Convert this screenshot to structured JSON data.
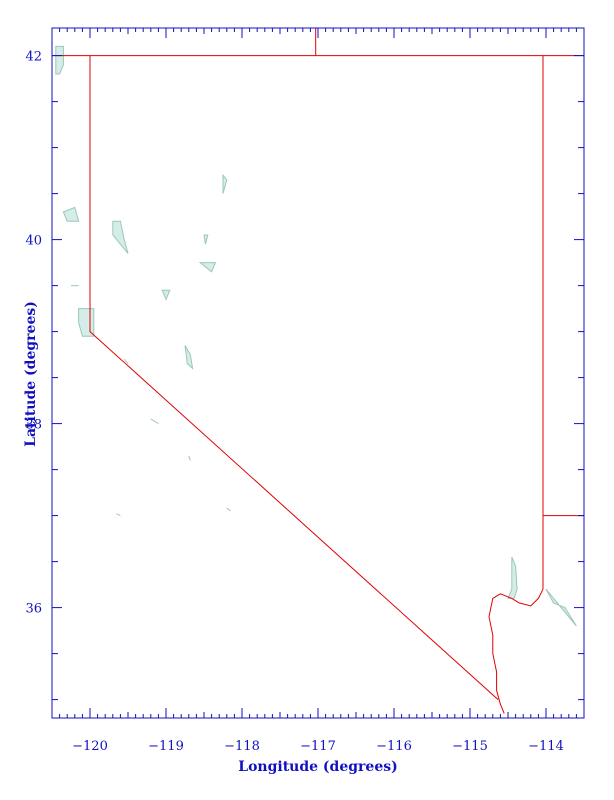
{
  "map": {
    "xlabel": "Longitude (degrees)",
    "ylabel": "Latitude (degrees)",
    "xlim": [
      -120.5,
      -113.5
    ],
    "ylim": [
      34.8,
      42.3
    ],
    "x_ticks": [
      -120,
      -119,
      -118,
      -117,
      -116,
      -115,
      -114
    ],
    "x_tick_labels": [
      "−120",
      "−119",
      "−118",
      "−117",
      "−116",
      "−115",
      "−114"
    ],
    "y_ticks": [
      36,
      38,
      40,
      42
    ],
    "y_tick_labels": [
      "36",
      "38",
      "40",
      "42"
    ],
    "colors": {
      "axis": "#1010c0",
      "border": "#e00000",
      "water_fill": "#d4ede8",
      "water_stroke": "#9cc7b5"
    },
    "state_borders": [
      {
        "name": "nevada-border",
        "points": [
          [
            -120.0,
            42.0
          ],
          [
            -120.0,
            39.0
          ],
          [
            -114.63,
            35.0
          ]
        ]
      },
      {
        "name": "northern-state-line",
        "points": [
          [
            -120.5,
            42.0
          ],
          [
            -113.5,
            42.0
          ]
        ]
      },
      {
        "name": "idaho-oregon-line",
        "points": [
          [
            -117.03,
            42.0
          ],
          [
            -117.03,
            42.3
          ]
        ]
      },
      {
        "name": "nevada-utah-line",
        "points": [
          [
            -114.04,
            42.0
          ],
          [
            -114.04,
            36.2
          ]
        ]
      },
      {
        "name": "utah-arizona-line",
        "points": [
          [
            -114.04,
            37.0
          ],
          [
            -113.5,
            37.0
          ]
        ]
      },
      {
        "name": "colorado-river-border",
        "points": [
          [
            -114.04,
            36.2
          ],
          [
            -114.1,
            36.1
          ],
          [
            -114.2,
            36.02
          ],
          [
            -114.35,
            36.05
          ],
          [
            -114.45,
            36.1
          ],
          [
            -114.6,
            36.15
          ],
          [
            -114.7,
            36.1
          ],
          [
            -114.75,
            35.9
          ],
          [
            -114.7,
            35.7
          ],
          [
            -114.7,
            35.5
          ],
          [
            -114.65,
            35.3
          ],
          [
            -114.65,
            35.1
          ],
          [
            -114.6,
            34.95
          ],
          [
            -114.55,
            34.85
          ]
        ]
      }
    ],
    "water_bodies": [
      {
        "name": "goose-lake",
        "points": [
          [
            -120.45,
            42.1
          ],
          [
            -120.35,
            42.1
          ],
          [
            -120.35,
            41.9
          ],
          [
            -120.4,
            41.8
          ],
          [
            -120.45,
            41.8
          ]
        ]
      },
      {
        "name": "pyramid-lake",
        "points": [
          [
            -119.7,
            40.2
          ],
          [
            -119.6,
            40.2
          ],
          [
            -119.55,
            40.0
          ],
          [
            -119.5,
            39.85
          ],
          [
            -119.6,
            39.95
          ],
          [
            -119.7,
            40.05
          ]
        ]
      },
      {
        "name": "honey-lake",
        "points": [
          [
            -120.35,
            40.3
          ],
          [
            -120.2,
            40.35
          ],
          [
            -120.15,
            40.2
          ],
          [
            -120.3,
            40.2
          ]
        ]
      },
      {
        "name": "lake-tahoe",
        "points": [
          [
            -120.15,
            39.25
          ],
          [
            -119.95,
            39.25
          ],
          [
            -119.95,
            38.95
          ],
          [
            -120.1,
            38.95
          ],
          [
            -120.15,
            39.1
          ]
        ]
      },
      {
        "name": "walker-lake",
        "points": [
          [
            -118.75,
            38.85
          ],
          [
            -118.68,
            38.75
          ],
          [
            -118.65,
            38.6
          ],
          [
            -118.72,
            38.65
          ]
        ]
      },
      {
        "name": "lake-mead",
        "points": [
          [
            -114.45,
            36.55
          ],
          [
            -114.4,
            36.45
          ],
          [
            -114.38,
            36.2
          ],
          [
            -114.42,
            36.1
          ],
          [
            -114.5,
            36.1
          ],
          [
            -114.45,
            36.2
          ]
        ]
      },
      {
        "name": "winnemucca-lake",
        "points": [
          [
            -118.25,
            40.7
          ],
          [
            -118.2,
            40.65
          ],
          [
            -118.25,
            40.5
          ]
        ]
      },
      {
        "name": "lahontan-reservoir",
        "points": [
          [
            -119.05,
            39.45
          ],
          [
            -118.95,
            39.45
          ],
          [
            -119.0,
            39.35
          ]
        ]
      },
      {
        "name": "rye-patch",
        "points": [
          [
            -118.5,
            40.05
          ],
          [
            -118.45,
            40.05
          ],
          [
            -118.48,
            39.95
          ]
        ]
      },
      {
        "name": "humboldt-sink",
        "points": [
          [
            -118.55,
            39.75
          ],
          [
            -118.35,
            39.75
          ],
          [
            -118.4,
            39.65
          ]
        ]
      },
      {
        "name": "topaz-lake",
        "points": [
          [
            -119.55,
            38.7
          ],
          [
            -119.5,
            38.65
          ]
        ]
      },
      {
        "name": "mono-lake",
        "points": [
          [
            -119.2,
            38.05
          ],
          [
            -119.1,
            38.0
          ]
        ]
      },
      {
        "name": "lake-mohave",
        "points": [
          [
            -114.0,
            36.2
          ],
          [
            -113.9,
            36.05
          ],
          [
            -113.75,
            36.0
          ],
          [
            -113.6,
            35.8
          ]
        ]
      },
      {
        "name": "lake-crowley",
        "points": [
          [
            -118.7,
            37.65
          ],
          [
            -118.68,
            37.6
          ]
        ]
      },
      {
        "name": "small-lake-south",
        "points": [
          [
            -119.65,
            37.02
          ],
          [
            -119.6,
            37.0
          ]
        ]
      },
      {
        "name": "small-lake-east",
        "points": [
          [
            -118.2,
            37.08
          ],
          [
            -118.15,
            37.05
          ]
        ]
      },
      {
        "name": "pickel-lake",
        "points": [
          [
            -120.25,
            39.5
          ],
          [
            -120.15,
            39.5
          ]
        ]
      }
    ]
  }
}
